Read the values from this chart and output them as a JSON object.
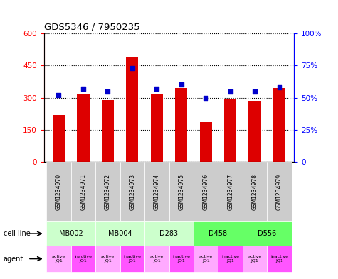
{
  "title": "GDS5346 / 7950235",
  "samples": [
    "GSM1234970",
    "GSM1234971",
    "GSM1234972",
    "GSM1234973",
    "GSM1234974",
    "GSM1234975",
    "GSM1234976",
    "GSM1234977",
    "GSM1234978",
    "GSM1234979"
  ],
  "counts": [
    220,
    320,
    290,
    490,
    315,
    345,
    185,
    295,
    285,
    345
  ],
  "percentiles": [
    52,
    57,
    55,
    73,
    57,
    60,
    50,
    55,
    55,
    58
  ],
  "cell_lines": [
    {
      "label": "MB002",
      "span": [
        0,
        2
      ],
      "color": "#ccffcc"
    },
    {
      "label": "MB004",
      "span": [
        2,
        4
      ],
      "color": "#ccffcc"
    },
    {
      "label": "D283",
      "span": [
        4,
        6
      ],
      "color": "#ccffcc"
    },
    {
      "label": "D458",
      "span": [
        6,
        8
      ],
      "color": "#66ff66"
    },
    {
      "label": "D556",
      "span": [
        8,
        10
      ],
      "color": "#66ff66"
    }
  ],
  "agents": [
    {
      "label": "active\nJQ1",
      "color": "#ffaaff"
    },
    {
      "label": "inactive\nJQ1",
      "color": "#ff55ff"
    },
    {
      "label": "active\nJQ1",
      "color": "#ffaaff"
    },
    {
      "label": "inactive\nJQ1",
      "color": "#ff55ff"
    },
    {
      "label": "active\nJQ1",
      "color": "#ffaaff"
    },
    {
      "label": "inactive\nJQ1",
      "color": "#ff55ff"
    },
    {
      "label": "active\nJQ1",
      "color": "#ffaaff"
    },
    {
      "label": "inactive\nJQ1",
      "color": "#ff55ff"
    },
    {
      "label": "active\nJQ1",
      "color": "#ffaaff"
    },
    {
      "label": "inactive\nJQ1",
      "color": "#ff55ff"
    }
  ],
  "bar_color": "#dd0000",
  "dot_color": "#0000cc",
  "ylim_left": [
    0,
    600
  ],
  "ylim_right": [
    0,
    100
  ],
  "yticks_left": [
    0,
    150,
    300,
    450,
    600
  ],
  "yticks_right": [
    0,
    25,
    50,
    75,
    100
  ],
  "yticklabels_left": [
    "0",
    "150",
    "300",
    "450",
    "600"
  ],
  "yticklabels_right": [
    "0",
    "25%",
    "50%",
    "75%",
    "100%"
  ],
  "sample_bg_color": "#cccccc",
  "bar_width": 0.5
}
